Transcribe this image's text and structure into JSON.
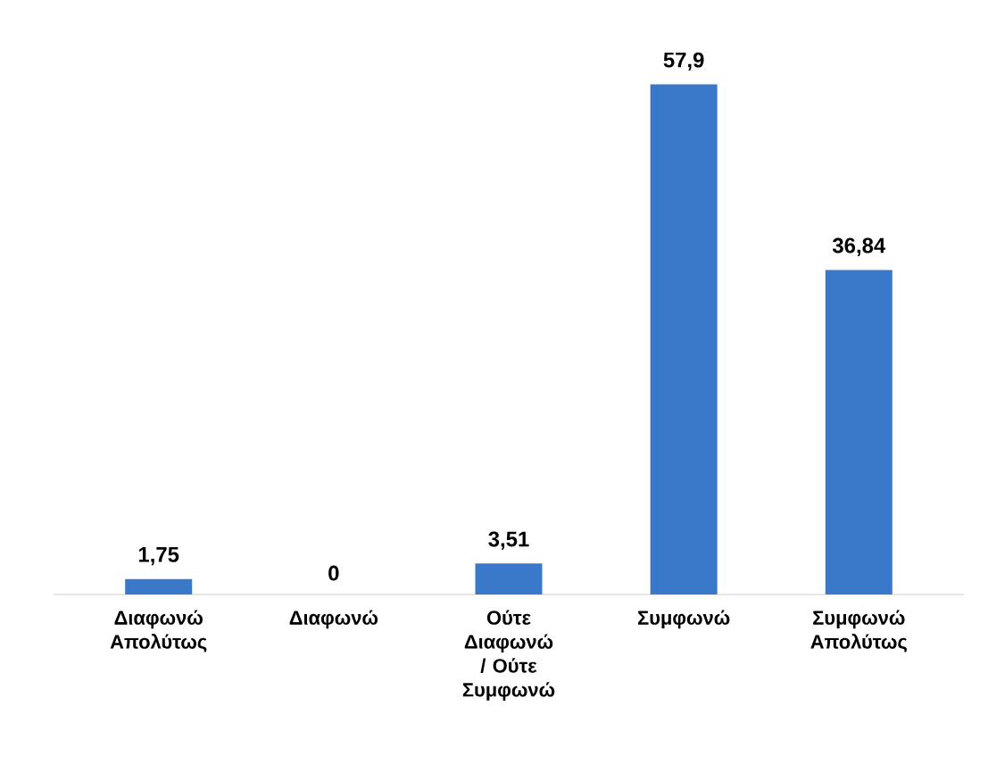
{
  "chart_data": {
    "type": "bar",
    "categories": [
      "Διαφωνώ Απολύτως",
      "Διαφωνώ",
      "Ούτε Διαφωνώ / Ούτε Συμφωνώ",
      "Συμφωνώ",
      "Συμφωνώ Απολύτως"
    ],
    "values": [
      1.75,
      0,
      3.51,
      57.9,
      36.84
    ],
    "value_labels": [
      "1,75",
      "0",
      "3,51",
      "57,9",
      "36,84"
    ],
    "color": "#3a78c9"
  }
}
